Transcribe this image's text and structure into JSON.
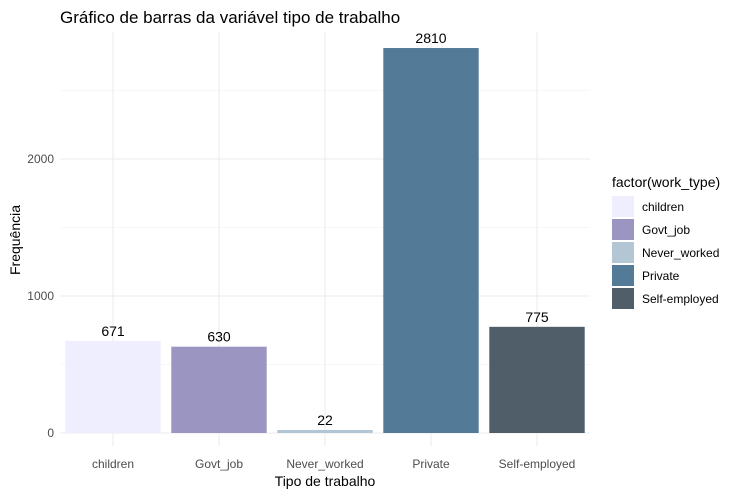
{
  "chart_data": {
    "type": "bar",
    "title": "Gráfico de barras da variável tipo de trabalho",
    "xlabel": "Tipo de trabalho",
    "ylabel": "Frequência",
    "categories": [
      "children",
      "Govt_job",
      "Never_worked",
      "Private",
      "Self-employed"
    ],
    "values": [
      671,
      630,
      22,
      2810,
      775
    ],
    "ylim": [
      0,
      2950
    ],
    "yticks": [
      0,
      1000,
      2000
    ],
    "grid": true,
    "legend": {
      "title": "factor(work_type)",
      "position": "right",
      "entries": [
        "children",
        "Govt_job",
        "Never_worked",
        "Private",
        "Self-employed"
      ]
    },
    "colors": [
      "#efeefe",
      "#9b96c1",
      "#b3c6d3",
      "#537a96",
      "#4f5e69"
    ]
  }
}
